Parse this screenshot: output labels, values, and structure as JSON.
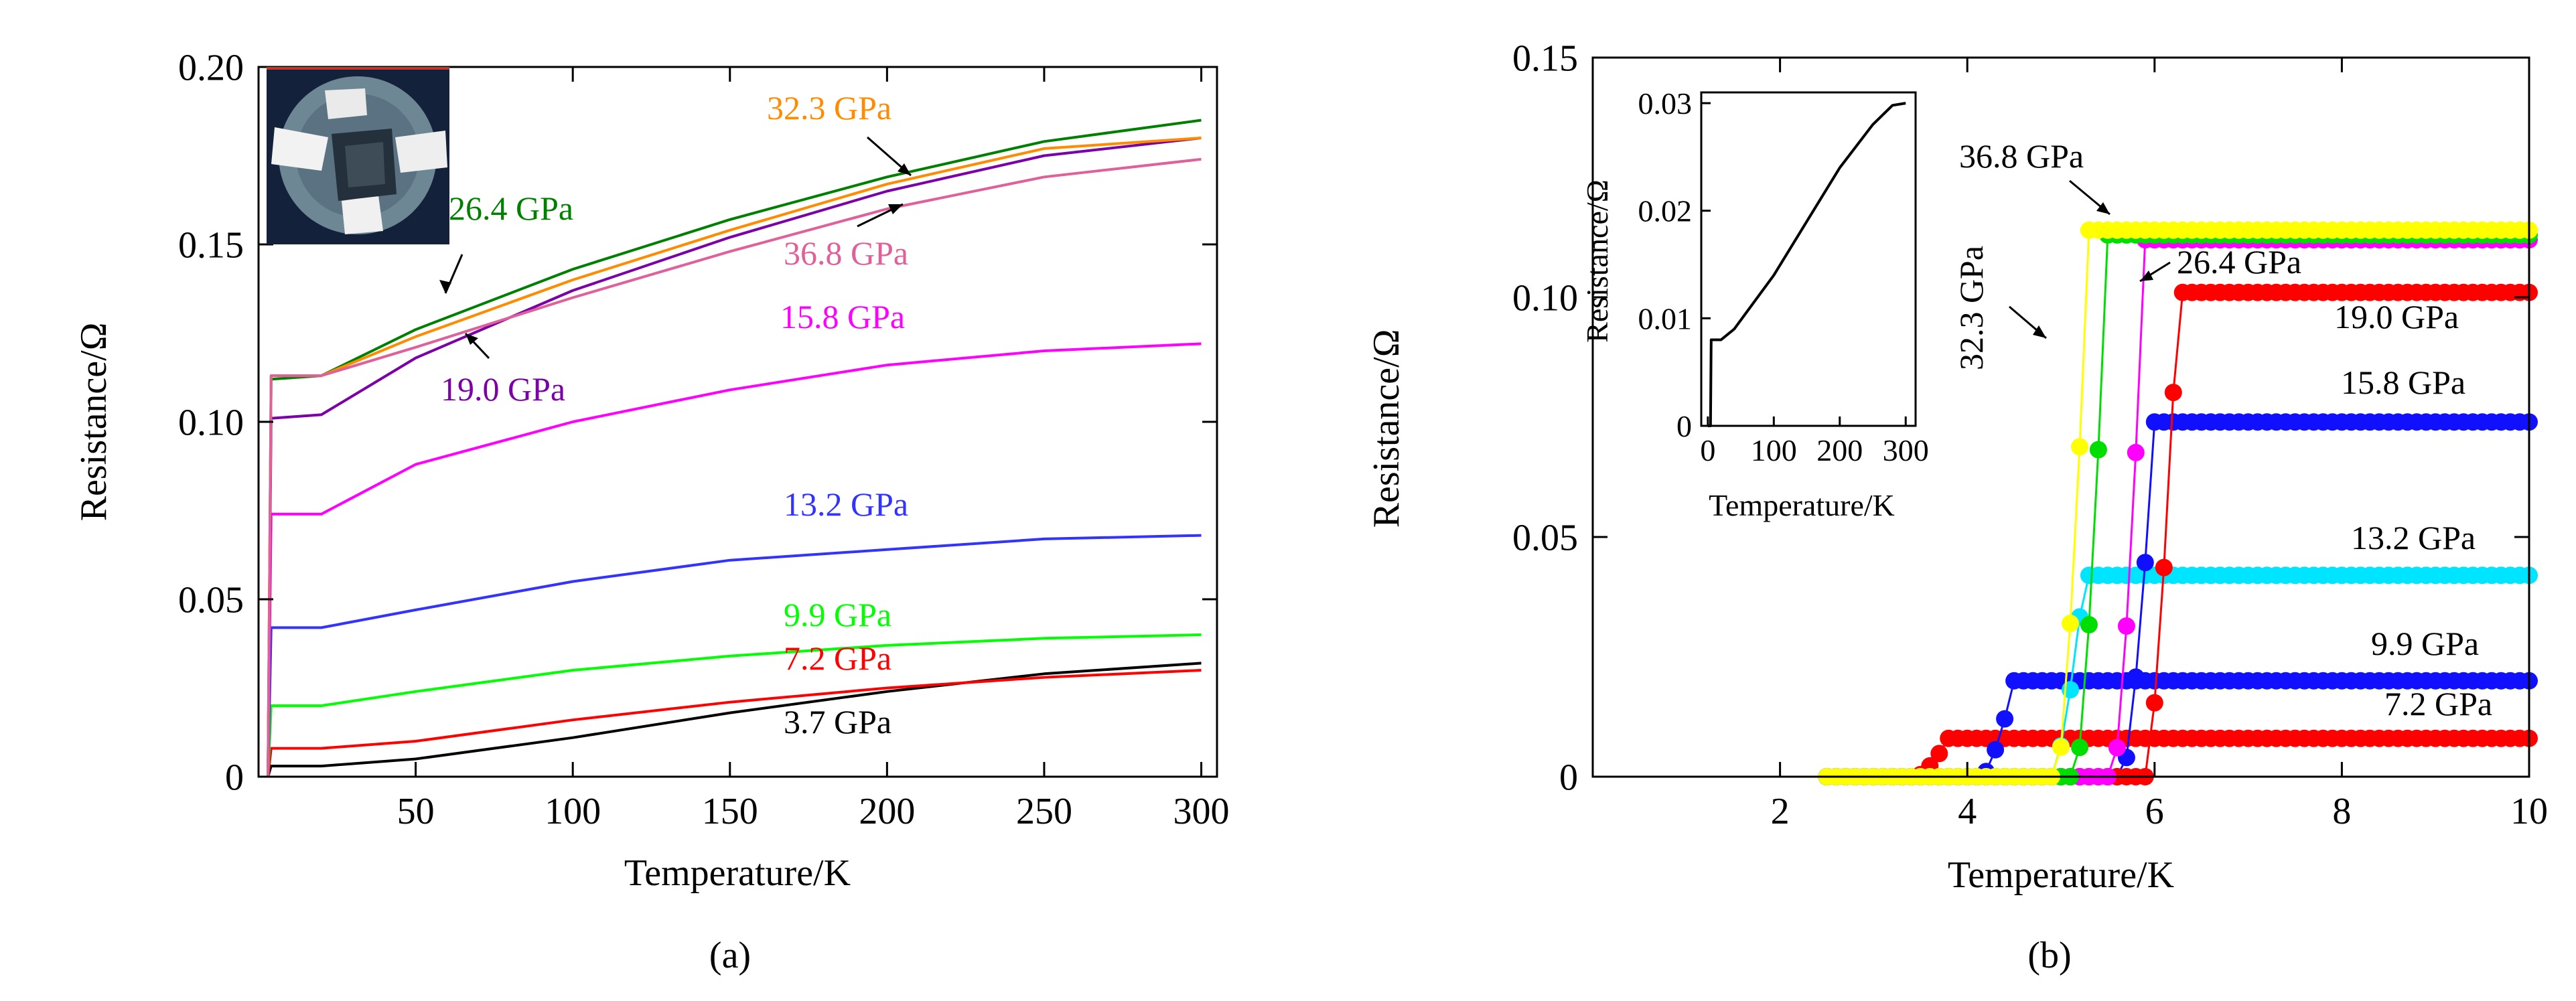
{
  "chart_data": [
    {
      "type": "line",
      "panel": "(a)",
      "xlabel": "Temperature/K",
      "ylabel": "Resistance/Ω",
      "xlim": [
        0,
        305
      ],
      "ylim": [
        0,
        0.2
      ],
      "xticks": [
        50,
        100,
        150,
        200,
        250,
        300
      ],
      "xtick_labels": [
        "50",
        "100",
        "150",
        "200",
        "250",
        "300"
      ],
      "yticks": [
        0,
        0.05,
        0.1,
        0.15,
        0.2
      ],
      "ytick_labels": [
        "0",
        "0.05",
        "0.10",
        "0.15",
        "0.20"
      ],
      "inset_image": "sample-photo-diamond-anvil-cell",
      "series": [
        {
          "name": "3.7 GPa",
          "color": "#000000",
          "label": "3.7 GPa",
          "points": [
            [
              3,
              0
            ],
            [
              4,
              0.003
            ],
            [
              20,
              0.003
            ],
            [
              50,
              0.005
            ],
            [
              100,
              0.011
            ],
            [
              150,
              0.018
            ],
            [
              200,
              0.024
            ],
            [
              250,
              0.029
            ],
            [
              300,
              0.032
            ]
          ]
        },
        {
          "name": "7.2 GPa",
          "color": "#ff0000",
          "label": "7.2 GPa",
          "points": [
            [
              3,
              0
            ],
            [
              4,
              0.008
            ],
            [
              20,
              0.008
            ],
            [
              50,
              0.01
            ],
            [
              100,
              0.016
            ],
            [
              150,
              0.021
            ],
            [
              200,
              0.025
            ],
            [
              250,
              0.028
            ],
            [
              300,
              0.03
            ]
          ]
        },
        {
          "name": "9.9 GPa",
          "color": "#00ff00",
          "label": "9.9 GPa",
          "points": [
            [
              3,
              0
            ],
            [
              4,
              0.02
            ],
            [
              20,
              0.02
            ],
            [
              50,
              0.024
            ],
            [
              100,
              0.03
            ],
            [
              150,
              0.034
            ],
            [
              200,
              0.037
            ],
            [
              250,
              0.039
            ],
            [
              300,
              0.04
            ]
          ]
        },
        {
          "name": "13.2 GPa",
          "color": "#3333ff",
          "label": "13.2 GPa",
          "points": [
            [
              3,
              0
            ],
            [
              4,
              0.042
            ],
            [
              20,
              0.042
            ],
            [
              50,
              0.047
            ],
            [
              100,
              0.055
            ],
            [
              150,
              0.061
            ],
            [
              200,
              0.064
            ],
            [
              250,
              0.067
            ],
            [
              300,
              0.068
            ]
          ]
        },
        {
          "name": "15.8 GPa",
          "color": "#ff00ff",
          "label": "15.8 GPa",
          "points": [
            [
              3,
              0
            ],
            [
              4,
              0.074
            ],
            [
              20,
              0.074
            ],
            [
              50,
              0.088
            ],
            [
              100,
              0.1
            ],
            [
              150,
              0.109
            ],
            [
              200,
              0.116
            ],
            [
              250,
              0.12
            ],
            [
              300,
              0.122
            ]
          ]
        },
        {
          "name": "19.0 GPa",
          "color": "#7b00a8",
          "label": "19.0 GPa",
          "points": [
            [
              3,
              0
            ],
            [
              4,
              0.101
            ],
            [
              20,
              0.102
            ],
            [
              50,
              0.118
            ],
            [
              100,
              0.137
            ],
            [
              150,
              0.152
            ],
            [
              200,
              0.165
            ],
            [
              250,
              0.175
            ],
            [
              300,
              0.18
            ]
          ]
        },
        {
          "name": "26.4 GPa",
          "color": "#008000",
          "label": "26.4 GPa",
          "points": [
            [
              3,
              0
            ],
            [
              4,
              0.112
            ],
            [
              20,
              0.113
            ],
            [
              50,
              0.126
            ],
            [
              100,
              0.143
            ],
            [
              150,
              0.157
            ],
            [
              200,
              0.169
            ],
            [
              250,
              0.179
            ],
            [
              300,
              0.185
            ]
          ]
        },
        {
          "name": "32.3 GPa",
          "color": "#ff8c00",
          "label": "32.3 GPa",
          "points": [
            [
              3,
              0
            ],
            [
              4,
              0.113
            ],
            [
              20,
              0.113
            ],
            [
              50,
              0.124
            ],
            [
              100,
              0.14
            ],
            [
              150,
              0.154
            ],
            [
              200,
              0.167
            ],
            [
              250,
              0.177
            ],
            [
              300,
              0.18
            ]
          ]
        },
        {
          "name": "36.8 GPa",
          "color": "#e0609a",
          "label": "36.8 GPa",
          "points": [
            [
              3,
              0
            ],
            [
              4,
              0.113
            ],
            [
              20,
              0.113
            ],
            [
              50,
              0.121
            ],
            [
              100,
              0.135
            ],
            [
              150,
              0.148
            ],
            [
              200,
              0.16
            ],
            [
              250,
              0.169
            ],
            [
              300,
              0.174
            ]
          ]
        }
      ]
    },
    {
      "type": "scatter",
      "panel": "(b)",
      "xlabel": "Temperature/K",
      "ylabel": "Resistance/Ω",
      "xlim": [
        0,
        10
      ],
      "ylim": [
        0,
        0.15
      ],
      "xticks": [
        2,
        4,
        6,
        8,
        10
      ],
      "xtick_labels": [
        "2",
        "4",
        "6",
        "8",
        "10"
      ],
      "yticks": [
        0,
        0.05,
        0.1,
        0.15
      ],
      "ytick_labels": [
        "0",
        "0.05",
        "0.10",
        "0.15"
      ],
      "series": [
        {
          "name": "7.2 GPa",
          "color": "#ff0000",
          "label": "7.2 GPa",
          "Tc_onset": 3.8,
          "R_normal": 0.008
        },
        {
          "name": "9.9 GPa",
          "color": "#1010ff",
          "label": "9.9 GPa",
          "Tc_onset": 4.5,
          "R_normal": 0.02
        },
        {
          "name": "13.2 GPa",
          "color": "#00e5ff",
          "label": "13.2 GPa",
          "Tc_onset": 5.25,
          "R_normal": 0.042
        },
        {
          "name": "15.8 GPa",
          "color": "#1010ff",
          "label": "15.8 GPa",
          "Tc_onset": 6.0,
          "R_normal": 0.074
        },
        {
          "name": "19.0 GPa",
          "color": "#ff0000",
          "label": "19.0 GPa",
          "Tc_onset": 6.25,
          "R_normal": 0.101
        },
        {
          "name": "26.4 GPa",
          "color": "#ff00ff",
          "label": "26.4 GPa",
          "Tc_onset": 5.9,
          "R_normal": 0.112
        },
        {
          "name": "32.3 GPa",
          "color": "#00dd00",
          "label": "32.3 GPa",
          "Tc_onset": 5.5,
          "R_normal": 0.113
        },
        {
          "name": "36.8 GPa",
          "color": "#ffff00",
          "label": "36.8 GPa",
          "Tc_onset": 5.3,
          "R_normal": 0.114
        }
      ],
      "inset": {
        "type": "line",
        "xlabel": "Temperature/K",
        "ylabel": "Resistance/Ω",
        "xlim": [
          -10,
          315
        ],
        "ylim": [
          0,
          0.031
        ],
        "xticks": [
          0,
          100,
          200,
          300
        ],
        "xtick_labels": [
          "0",
          "100",
          "200",
          "300"
        ],
        "yticks": [
          0,
          0.01,
          0.02,
          0.03
        ],
        "ytick_labels": [
          "0",
          "0.01",
          "0.02",
          "0.03"
        ],
        "points": [
          [
            0,
            0
          ],
          [
            4,
            0
          ],
          [
            5,
            0.008
          ],
          [
            20,
            0.008
          ],
          [
            40,
            0.009
          ],
          [
            100,
            0.014
          ],
          [
            150,
            0.019
          ],
          [
            200,
            0.024
          ],
          [
            250,
            0.028
          ],
          [
            280,
            0.0298
          ],
          [
            300,
            0.03
          ]
        ]
      }
    }
  ]
}
